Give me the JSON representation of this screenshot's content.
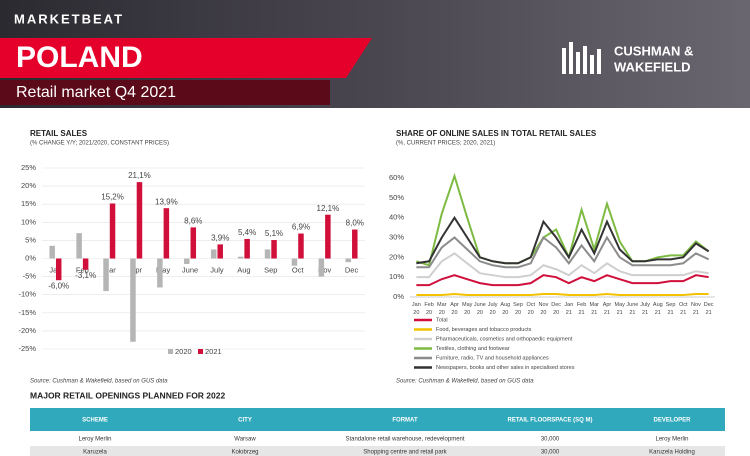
{
  "header": {
    "brand": "MARKETBEAT",
    "title": "POLAND",
    "subtitle": "Retail market Q4 2021",
    "logo": [
      "CUSHMAN &",
      "WAKEFIELD"
    ]
  },
  "chart_data": [
    {
      "type": "bar",
      "title": "RETAIL SALES",
      "subtitle": "(% CHANGE Y/Y; 2021/2020, CONSTANT PRICES)",
      "categories": [
        "Jan",
        "Feb",
        "Mar",
        "Apr",
        "May",
        "June",
        "July",
        "Aug",
        "Sep",
        "Oct",
        "Nov",
        "Dec"
      ],
      "series": [
        {
          "name": "2020",
          "color": "#b5b5b5",
          "values": [
            3.5,
            7,
            -9,
            -23,
            -8,
            -1.5,
            2.5,
            0.5,
            2.5,
            -2,
            -5,
            -1
          ]
        },
        {
          "name": "2021",
          "color": "#d0103a",
          "values": [
            -6.0,
            -3.1,
            15.2,
            21.1,
            13.9,
            8.6,
            3.9,
            5.4,
            5.1,
            6.9,
            12.1,
            8.0
          ],
          "value_labels": [
            "-6,0%",
            "-3,1%",
            "15,2%",
            "21,1%",
            "13,9%",
            "8,6%",
            "3,9%",
            "5,4%",
            "5,1%",
            "6,9%",
            "12,1%",
            "8,0%"
          ]
        }
      ],
      "ylim": [
        -25,
        25
      ],
      "yticks": [
        {
          "value": -25,
          "label": "-25%"
        },
        {
          "value": -20,
          "label": "-20%"
        },
        {
          "value": -15,
          "label": "-15%"
        },
        {
          "value": -10,
          "label": "-10%"
        },
        {
          "value": -5,
          "label": "-5%"
        },
        {
          "value": 0,
          "label": "0%"
        },
        {
          "value": 5,
          "label": "5%"
        },
        {
          "value": 10,
          "label": "10%"
        },
        {
          "value": 15,
          "label": "15%"
        },
        {
          "value": 20,
          "label": "20%"
        },
        {
          "value": 25,
          "label": "25%"
        }
      ],
      "grid": true,
      "legend": "bottom",
      "source": "Source: Cushman & Wakefield, based on GUS data"
    },
    {
      "type": "line",
      "title": "SHARE OF ONLINE SALES IN TOTAL RETAIL SALES",
      "subtitle": "(%, CURRENT PRICES; 2020, 2021)",
      "categories": [
        "Jan 20",
        "Feb 20",
        "Mar 20",
        "Apr 20",
        "May 20",
        "June 20",
        "July 20",
        "Aug 20",
        "Sep 20",
        "Oct 20",
        "Nov 20",
        "Dec 20",
        "Jan 21",
        "Feb 21",
        "Mar 21",
        "Apr 21",
        "May 21",
        "June 21",
        "July 21",
        "Aug 21",
        "Sep 21",
        "Oct 21",
        "Nov 21",
        "Dec 21"
      ],
      "series": [
        {
          "name": "Total",
          "color": "#d0103a",
          "values": [
            6,
            6,
            9,
            11,
            9,
            7,
            6,
            6,
            6,
            7,
            11,
            10,
            7,
            10,
            8,
            11,
            9,
            7,
            7,
            7,
            8,
            8,
            11,
            10
          ]
        },
        {
          "name": "Food, beverages and tobacco products",
          "color": "#f2c200",
          "values": [
            1,
            1,
            1,
            1.5,
            1,
            1,
            1,
            1,
            1,
            1,
            1.5,
            1.5,
            1,
            1,
            1,
            1.5,
            1,
            1,
            1,
            1,
            1,
            1,
            1.5,
            1.5
          ]
        },
        {
          "name": "Pharmaceuticals, cosmetics and orthopaedic equipment",
          "color": "#cfcfcf",
          "values": [
            10,
            10,
            18,
            22,
            17,
            12,
            11,
            10,
            10,
            11,
            16,
            14,
            11,
            16,
            12,
            17,
            13,
            11,
            11,
            11,
            11,
            11,
            13,
            12
          ]
        },
        {
          "name": "Textiles, clothing and footwear",
          "color": "#7dbb42",
          "values": [
            18,
            16,
            42,
            61,
            40,
            20,
            18,
            17,
            17,
            20,
            30,
            34,
            20,
            44,
            24,
            47,
            28,
            18,
            18,
            20,
            21,
            21,
            28,
            23
          ]
        },
        {
          "name": "Furniture, radio, TV and household appliances",
          "color": "#8c8c8c",
          "values": [
            15,
            15,
            25,
            30,
            24,
            18,
            16,
            15,
            15,
            17,
            30,
            25,
            17,
            26,
            18,
            30,
            20,
            16,
            16,
            16,
            16,
            17,
            22,
            19
          ]
        },
        {
          "name": "Newspapers, books and other sales in specialised stores",
          "color": "#333333",
          "values": [
            17,
            18,
            30,
            40,
            30,
            20,
            18,
            17,
            17,
            20,
            38,
            30,
            20,
            34,
            22,
            38,
            24,
            18,
            18,
            19,
            19,
            20,
            27,
            23
          ]
        }
      ],
      "ylim": [
        0,
        60
      ],
      "yticks": [
        {
          "value": 0,
          "label": "0%"
        },
        {
          "value": 10,
          "label": "10%"
        },
        {
          "value": 20,
          "label": "20%"
        },
        {
          "value": 30,
          "label": "30%"
        },
        {
          "value": 40,
          "label": "40%"
        },
        {
          "value": 50,
          "label": "50%"
        },
        {
          "value": 60,
          "label": "60%"
        }
      ],
      "grid": false,
      "legend": "bottom",
      "source": "Source: Cushman & Wakefield, based on GUS data"
    }
  ],
  "table": {
    "title": "MAJOR RETAIL OPENINGS PLANNED FOR 2022",
    "columns": [
      "SCHEME",
      "CITY",
      "FORMAT",
      "RETAIL FLOORSPACE (SQ M)",
      "DEVELOPER"
    ],
    "rows": [
      [
        "Leroy Merlin",
        "Warsaw",
        "Standalone retail warehouse, redevelopment",
        "30,000",
        "Leroy Merlin"
      ],
      [
        "Karuzela",
        "Kołobrzeg",
        "Shopping centre and retail park",
        "30,000",
        "Karuzela Holding"
      ]
    ]
  }
}
